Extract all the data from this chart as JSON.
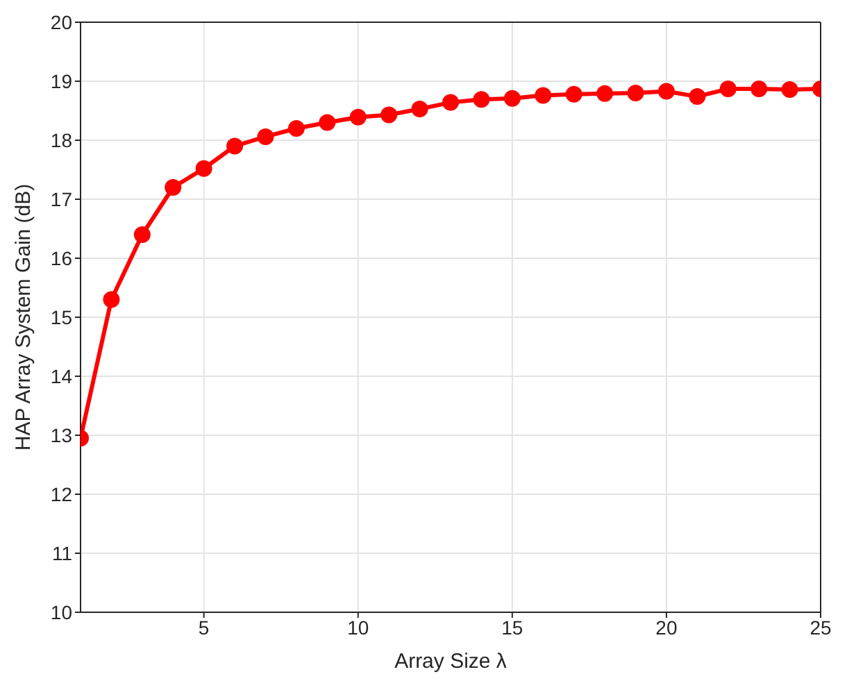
{
  "chart_data": {
    "type": "line",
    "xlabel": "Array Size λ",
    "ylabel": "HAP Array System Gain (dB)",
    "x": [
      1,
      2,
      3,
      4,
      5,
      6,
      7,
      8,
      9,
      10,
      11,
      12,
      13,
      14,
      15,
      16,
      17,
      18,
      19,
      20,
      21,
      22,
      23,
      24,
      25
    ],
    "series": [
      {
        "color": "#ff0000",
        "values": [
          12.95,
          15.3,
          16.4,
          17.2,
          17.52,
          17.9,
          18.06,
          18.2,
          18.3,
          18.39,
          18.43,
          18.53,
          18.64,
          18.69,
          18.71,
          18.76,
          18.78,
          18.79,
          18.8,
          18.83,
          18.74,
          18.87,
          18.87,
          18.86,
          18.87
        ]
      }
    ],
    "xlim": [
      1,
      25
    ],
    "xticks": [
      5,
      10,
      15,
      20,
      25
    ],
    "ylim": [
      10,
      20
    ],
    "yticks": [
      10,
      11,
      12,
      13,
      14,
      15,
      16,
      17,
      18,
      19,
      20
    ],
    "grid": true,
    "marker": "circle",
    "line_style": "solid"
  }
}
